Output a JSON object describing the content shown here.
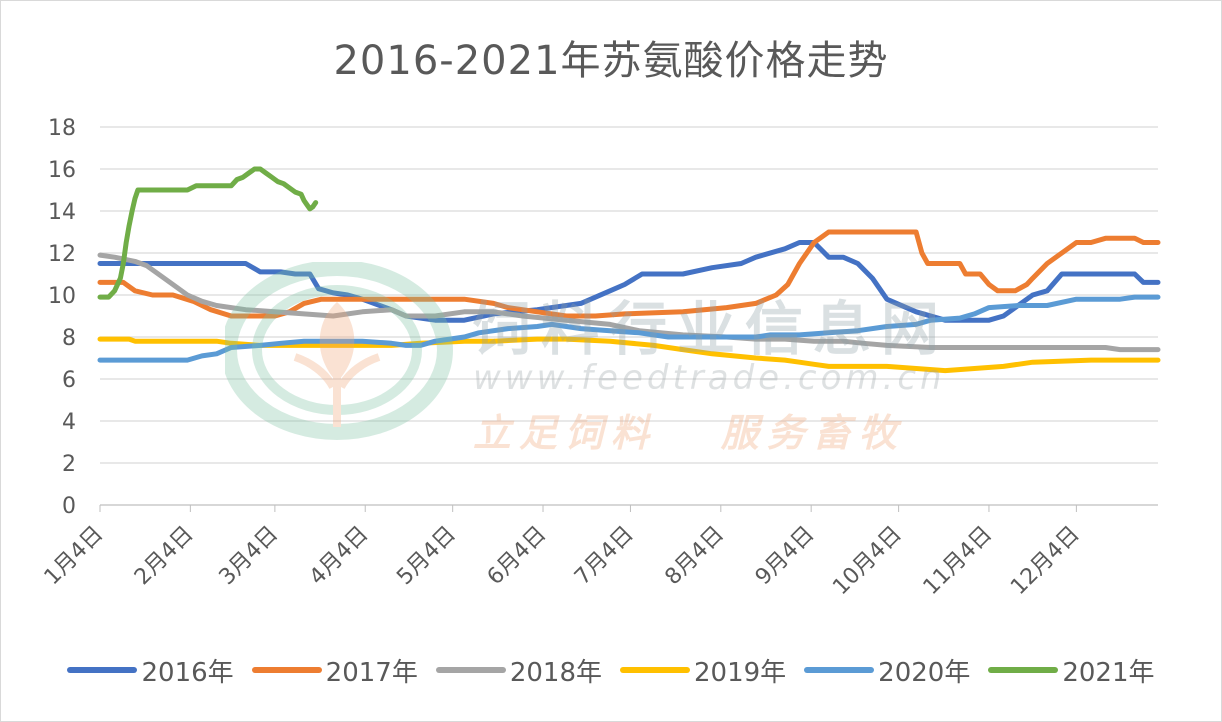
{
  "chart_data": {
    "type": "line",
    "title": "2016-2021年苏氨酸价格走势",
    "ylim": [
      0,
      18
    ],
    "yticks": [
      0,
      2,
      4,
      6,
      8,
      10,
      12,
      14,
      16,
      18
    ],
    "xlim": [
      0,
      363
    ],
    "xticks": [
      {
        "label": "1月4日",
        "day": 0
      },
      {
        "label": "2月4日",
        "day": 31
      },
      {
        "label": "3月4日",
        "day": 60
      },
      {
        "label": "4月4日",
        "day": 91
      },
      {
        "label": "5月4日",
        "day": 121
      },
      {
        "label": "6月4日",
        "day": 152
      },
      {
        "label": "7月4日",
        "day": 182
      },
      {
        "label": "8月4日",
        "day": 213
      },
      {
        "label": "9月4日",
        "day": 244
      },
      {
        "label": "10月4日",
        "day": 274
      },
      {
        "label": "11月4日",
        "day": 305
      },
      {
        "label": "12月4日",
        "day": 335
      }
    ],
    "grid": true,
    "legend_position": "bottom",
    "series": [
      {
        "name": "2016年",
        "color": "#4472c4",
        "points": [
          [
            0,
            11.5
          ],
          [
            50,
            11.5
          ],
          [
            55,
            11.1
          ],
          [
            62,
            11.1
          ],
          [
            67,
            11.0
          ],
          [
            72,
            11.0
          ],
          [
            75,
            10.3
          ],
          [
            80,
            10.1
          ],
          [
            85,
            10.0
          ],
          [
            90,
            9.8
          ],
          [
            100,
            9.3
          ],
          [
            105,
            9.0
          ],
          [
            115,
            8.8
          ],
          [
            125,
            8.8
          ],
          [
            135,
            9.1
          ],
          [
            150,
            9.3
          ],
          [
            165,
            9.6
          ],
          [
            175,
            10.2
          ],
          [
            180,
            10.5
          ],
          [
            186,
            11.0
          ],
          [
            200,
            11.0
          ],
          [
            210,
            11.3
          ],
          [
            220,
            11.5
          ],
          [
            225,
            11.8
          ],
          [
            235,
            12.2
          ],
          [
            240,
            12.5
          ],
          [
            245,
            12.5
          ],
          [
            250,
            11.8
          ],
          [
            255,
            11.8
          ],
          [
            260,
            11.5
          ],
          [
            265,
            10.8
          ],
          [
            270,
            9.8
          ],
          [
            280,
            9.2
          ],
          [
            290,
            8.8
          ],
          [
            300,
            8.8
          ],
          [
            305,
            8.8
          ],
          [
            310,
            9.0
          ],
          [
            315,
            9.5
          ],
          [
            320,
            10.0
          ],
          [
            325,
            10.2
          ],
          [
            330,
            11.0
          ],
          [
            345,
            11.0
          ],
          [
            355,
            11.0
          ],
          [
            358,
            10.6
          ],
          [
            363,
            10.6
          ]
        ]
      },
      {
        "name": "2017年",
        "color": "#ed7d31",
        "points": [
          [
            0,
            10.6
          ],
          [
            8,
            10.6
          ],
          [
            12,
            10.2
          ],
          [
            18,
            10.0
          ],
          [
            25,
            10.0
          ],
          [
            32,
            9.7
          ],
          [
            38,
            9.3
          ],
          [
            45,
            9.0
          ],
          [
            55,
            9.0
          ],
          [
            60,
            9.0
          ],
          [
            65,
            9.2
          ],
          [
            70,
            9.6
          ],
          [
            76,
            9.8
          ],
          [
            90,
            9.8
          ],
          [
            100,
            9.8
          ],
          [
            110,
            9.8
          ],
          [
            125,
            9.8
          ],
          [
            135,
            9.6
          ],
          [
            140,
            9.4
          ],
          [
            150,
            9.2
          ],
          [
            160,
            9.0
          ],
          [
            170,
            9.0
          ],
          [
            180,
            9.1
          ],
          [
            200,
            9.2
          ],
          [
            215,
            9.4
          ],
          [
            225,
            9.6
          ],
          [
            232,
            10.0
          ],
          [
            236,
            10.5
          ],
          [
            240,
            11.5
          ],
          [
            245,
            12.5
          ],
          [
            250,
            13.0
          ],
          [
            275,
            13.0
          ],
          [
            280,
            13.0
          ],
          [
            282,
            12.0
          ],
          [
            284,
            11.5
          ],
          [
            295,
            11.5
          ],
          [
            297,
            11.0
          ],
          [
            302,
            11.0
          ],
          [
            305,
            10.5
          ],
          [
            308,
            10.2
          ],
          [
            314,
            10.2
          ],
          [
            318,
            10.5
          ],
          [
            320,
            10.8
          ],
          [
            325,
            11.5
          ],
          [
            330,
            12.0
          ],
          [
            335,
            12.5
          ],
          [
            340,
            12.5
          ],
          [
            345,
            12.7
          ],
          [
            355,
            12.7
          ],
          [
            358,
            12.5
          ],
          [
            363,
            12.5
          ]
        ]
      },
      {
        "name": "2018年",
        "color": "#a5a5a5",
        "points": [
          [
            0,
            11.9
          ],
          [
            5,
            11.8
          ],
          [
            12,
            11.6
          ],
          [
            16,
            11.4
          ],
          [
            20,
            11.0
          ],
          [
            25,
            10.5
          ],
          [
            30,
            10.0
          ],
          [
            35,
            9.7
          ],
          [
            40,
            9.5
          ],
          [
            50,
            9.3
          ],
          [
            60,
            9.2
          ],
          [
            70,
            9.1
          ],
          [
            80,
            9.0
          ],
          [
            90,
            9.2
          ],
          [
            100,
            9.3
          ],
          [
            105,
            9.0
          ],
          [
            115,
            9.0
          ],
          [
            125,
            9.2
          ],
          [
            135,
            9.2
          ],
          [
            145,
            9.0
          ],
          [
            160,
            8.8
          ],
          [
            175,
            8.6
          ],
          [
            185,
            8.3
          ],
          [
            200,
            8.1
          ],
          [
            215,
            8.0
          ],
          [
            225,
            7.9
          ],
          [
            235,
            7.9
          ],
          [
            245,
            7.8
          ],
          [
            255,
            7.8
          ],
          [
            262,
            7.7
          ],
          [
            270,
            7.6
          ],
          [
            285,
            7.5
          ],
          [
            300,
            7.5
          ],
          [
            320,
            7.5
          ],
          [
            345,
            7.5
          ],
          [
            350,
            7.4
          ],
          [
            363,
            7.4
          ]
        ]
      },
      {
        "name": "2019年",
        "color": "#ffc000",
        "points": [
          [
            0,
            7.9
          ],
          [
            10,
            7.9
          ],
          [
            12,
            7.8
          ],
          [
            40,
            7.8
          ],
          [
            45,
            7.7
          ],
          [
            55,
            7.6
          ],
          [
            65,
            7.6
          ],
          [
            90,
            7.6
          ],
          [
            100,
            7.6
          ],
          [
            110,
            7.7
          ],
          [
            125,
            7.8
          ],
          [
            135,
            7.8
          ],
          [
            150,
            7.9
          ],
          [
            160,
            7.9
          ],
          [
            175,
            7.8
          ],
          [
            190,
            7.6
          ],
          [
            200,
            7.4
          ],
          [
            210,
            7.2
          ],
          [
            225,
            7.0
          ],
          [
            235,
            6.9
          ],
          [
            240,
            6.8
          ],
          [
            245,
            6.7
          ],
          [
            250,
            6.6
          ],
          [
            270,
            6.6
          ],
          [
            290,
            6.4
          ],
          [
            300,
            6.5
          ],
          [
            310,
            6.6
          ],
          [
            320,
            6.8
          ],
          [
            340,
            6.9
          ],
          [
            363,
            6.9
          ]
        ]
      },
      {
        "name": "2020年",
        "color": "#5b9bd5",
        "points": [
          [
            0,
            6.9
          ],
          [
            30,
            6.9
          ],
          [
            35,
            7.1
          ],
          [
            40,
            7.2
          ],
          [
            45,
            7.5
          ],
          [
            55,
            7.6
          ],
          [
            62,
            7.7
          ],
          [
            70,
            7.8
          ],
          [
            90,
            7.8
          ],
          [
            100,
            7.7
          ],
          [
            105,
            7.6
          ],
          [
            110,
            7.6
          ],
          [
            115,
            7.8
          ],
          [
            120,
            7.9
          ],
          [
            125,
            8.0
          ],
          [
            130,
            8.2
          ],
          [
            140,
            8.4
          ],
          [
            150,
            8.5
          ],
          [
            155,
            8.6
          ],
          [
            165,
            8.4
          ],
          [
            175,
            8.3
          ],
          [
            185,
            8.2
          ],
          [
            195,
            8.0
          ],
          [
            205,
            8.0
          ],
          [
            215,
            8.0
          ],
          [
            225,
            8.0
          ],
          [
            230,
            8.1
          ],
          [
            240,
            8.1
          ],
          [
            250,
            8.2
          ],
          [
            260,
            8.3
          ],
          [
            270,
            8.5
          ],
          [
            280,
            8.6
          ],
          [
            285,
            8.8
          ],
          [
            295,
            8.9
          ],
          [
            300,
            9.1
          ],
          [
            305,
            9.4
          ],
          [
            315,
            9.5
          ],
          [
            325,
            9.5
          ],
          [
            335,
            9.8
          ],
          [
            350,
            9.8
          ],
          [
            355,
            9.9
          ],
          [
            363,
            9.9
          ]
        ]
      },
      {
        "name": "2021年",
        "color": "#70ad47",
        "points": [
          [
            0,
            9.9
          ],
          [
            3,
            9.9
          ],
          [
            5,
            10.2
          ],
          [
            7,
            10.8
          ],
          [
            8,
            11.5
          ],
          [
            9,
            12.5
          ],
          [
            10,
            13.3
          ],
          [
            11,
            14.0
          ],
          [
            12,
            14.6
          ],
          [
            13,
            15.0
          ],
          [
            20,
            15.0
          ],
          [
            30,
            15.0
          ],
          [
            33,
            15.2
          ],
          [
            45,
            15.2
          ],
          [
            47,
            15.5
          ],
          [
            49,
            15.6
          ],
          [
            51,
            15.8
          ],
          [
            53,
            16.0
          ],
          [
            55,
            16.0
          ],
          [
            57,
            15.8
          ],
          [
            59,
            15.6
          ],
          [
            61,
            15.4
          ],
          [
            63,
            15.3
          ],
          [
            65,
            15.1
          ],
          [
            67,
            14.9
          ],
          [
            69,
            14.8
          ],
          [
            70,
            14.5
          ],
          [
            71,
            14.3
          ],
          [
            72,
            14.1
          ],
          [
            73,
            14.2
          ],
          [
            74,
            14.4
          ]
        ]
      }
    ]
  },
  "watermark": {
    "name": "饲料行业信息网",
    "url": "www.feedtrade.com.cn",
    "slogan": "立足饲料   服务畜牧"
  }
}
